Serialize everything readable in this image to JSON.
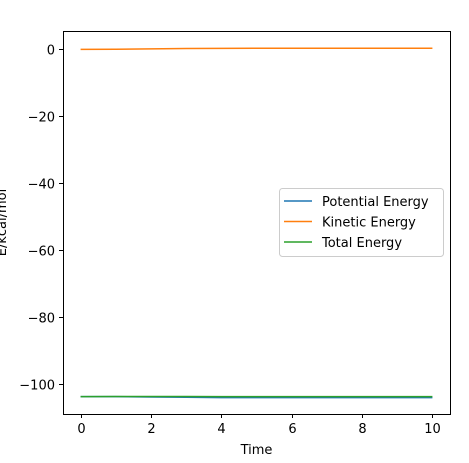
{
  "chart_data": {
    "type": "line",
    "xlabel": "Time",
    "ylabel": "E/kcal/mol",
    "xlim": [
      -0.5,
      10.5
    ],
    "ylim": [
      -109,
      5.5
    ],
    "xticks": [
      0,
      2,
      4,
      6,
      8,
      10
    ],
    "yticks": [
      0,
      -20,
      -40,
      -60,
      -80,
      -100
    ],
    "xtick_labels": [
      "0",
      "2",
      "4",
      "6",
      "8",
      "10"
    ],
    "ytick_labels": [
      "0",
      "−20",
      "−40",
      "−60",
      "−80",
      "−100"
    ],
    "legend_position": "center-right",
    "grid": false,
    "series": [
      {
        "name": "Potential Energy",
        "color": "#1f77b4",
        "x": [
          0,
          1,
          2,
          3,
          4,
          5,
          6,
          7,
          8,
          9,
          10
        ],
        "y": [
          -103.8,
          -103.8,
          -103.9,
          -104.0,
          -104.1,
          -104.1,
          -104.1,
          -104.1,
          -104.1,
          -104.1,
          -104.1
        ]
      },
      {
        "name": "Kinetic Energy",
        "color": "#ff7f0e",
        "x": [
          0,
          1,
          2,
          3,
          4,
          5,
          6,
          7,
          8,
          9,
          10
        ],
        "y": [
          0.0,
          0.05,
          0.15,
          0.25,
          0.3,
          0.35,
          0.35,
          0.35,
          0.35,
          0.35,
          0.35
        ]
      },
      {
        "name": "Total Energy",
        "color": "#2ca02c",
        "x": [
          0,
          1,
          2,
          3,
          4,
          5,
          6,
          7,
          8,
          9,
          10
        ],
        "y": [
          -103.8,
          -103.75,
          -103.75,
          -103.75,
          -103.8,
          -103.8,
          -103.8,
          -103.8,
          -103.8,
          -103.8,
          -103.8
        ]
      }
    ]
  }
}
